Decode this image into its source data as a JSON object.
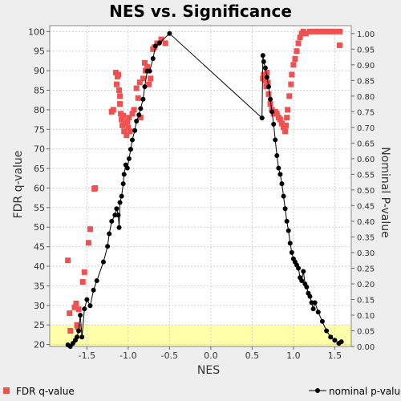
{
  "chart_data": {
    "type": "scatter",
    "title": "NES vs. Significance",
    "xlabel": "NES",
    "ylabel_left": "FDR q-value",
    "ylabel_right": "Nominal P-value",
    "xlim": [
      -1.95,
      1.7
    ],
    "ylim_left": [
      19.5,
      101.5
    ],
    "ylim_right": [
      0.0,
      1.025
    ],
    "x_ticks": [
      -1.5,
      -1.0,
      -0.5,
      0.0,
      0.5,
      1.0,
      1.5
    ],
    "x_tick_labels": [
      "-1.5",
      "-1.0",
      "-0.5",
      "0.0",
      "0.5",
      "1.0",
      "1.5"
    ],
    "y_left_ticks": [
      20,
      25,
      30,
      35,
      40,
      45,
      50,
      55,
      60,
      65,
      70,
      75,
      80,
      85,
      90,
      95,
      100
    ],
    "y_left_tick_labels": [
      "20",
      "25",
      "30",
      "35",
      "40",
      "45",
      "50",
      "55",
      "60",
      "65",
      "70",
      "75",
      "80",
      "85",
      "90",
      "95",
      "100"
    ],
    "y_right_ticks": [
      0.0,
      0.05,
      0.1,
      0.15,
      0.2,
      0.25,
      0.3,
      0.35,
      0.4,
      0.45,
      0.5,
      0.55,
      0.6,
      0.65,
      0.7,
      0.75,
      0.8,
      0.85,
      0.9,
      0.95,
      1.0
    ],
    "y_right_tick_labels": [
      "0.00",
      "0.05",
      "0.10",
      "0.15",
      "0.20",
      "0.25",
      "0.30",
      "0.35",
      "0.40",
      "0.45",
      "0.50",
      "0.55",
      "0.60",
      "0.65",
      "0.70",
      "0.75",
      "0.80",
      "0.85",
      "0.90",
      "0.95",
      "1.00"
    ],
    "significance_band": {
      "axis": "left",
      "from": 19.5,
      "to": 25,
      "color": "#ffffaa"
    },
    "grid": true,
    "legend_placement": "bottom",
    "series": [
      {
        "name": "FDR q-value",
        "kind": "square-markers",
        "axis": "left",
        "color": "#f05050",
        "points": [
          [
            -1.73,
            41.5
          ],
          [
            -1.71,
            28.0
          ],
          [
            -1.7,
            23.5
          ],
          [
            -1.65,
            29.5
          ],
          [
            -1.63,
            30.5
          ],
          [
            -1.62,
            25.0
          ],
          [
            -1.61,
            24.5
          ],
          [
            -1.6,
            29.0
          ],
          [
            -1.55,
            36.0
          ],
          [
            -1.53,
            38.5
          ],
          [
            -1.48,
            46.0
          ],
          [
            -1.46,
            49.5
          ],
          [
            -1.41,
            59.8
          ],
          [
            -1.4,
            60.0
          ],
          [
            -1.2,
            79.5
          ],
          [
            -1.18,
            80.0
          ],
          [
            -1.15,
            89.5
          ],
          [
            -1.14,
            86.5
          ],
          [
            -1.13,
            88.5
          ],
          [
            -1.12,
            89.0
          ],
          [
            -1.11,
            85.0
          ],
          [
            -1.1,
            83.5
          ],
          [
            -1.1,
            81.5
          ],
          [
            -1.09,
            79.0
          ],
          [
            -1.08,
            77.5
          ],
          [
            -1.07,
            76.0
          ],
          [
            -1.06,
            78.5
          ],
          [
            -1.05,
            74.5
          ],
          [
            -1.03,
            76.5
          ],
          [
            -1.02,
            73.5
          ],
          [
            -1.01,
            77.0
          ],
          [
            -1.0,
            75.5
          ],
          [
            -0.99,
            78.0
          ],
          [
            -0.98,
            74.5
          ],
          [
            -0.95,
            79.0
          ],
          [
            -0.93,
            80.0
          ],
          [
            -0.9,
            85.5
          ],
          [
            -0.88,
            83.0
          ],
          [
            -0.86,
            87.0
          ],
          [
            -0.85,
            78.0
          ],
          [
            -0.82,
            88.0
          ],
          [
            -0.8,
            92.0
          ],
          [
            -0.79,
            90.0
          ],
          [
            -0.77,
            91.0
          ],
          [
            -0.75,
            86.5
          ],
          [
            -0.73,
            88.0
          ],
          [
            -0.7,
            95.5
          ],
          [
            -0.68,
            96.0
          ],
          [
            -0.65,
            97.0
          ],
          [
            -0.6,
            98.0
          ],
          [
            -0.55,
            97.0
          ],
          [
            0.63,
            88.0
          ],
          [
            0.64,
            89.0
          ],
          [
            0.65,
            88.5
          ],
          [
            0.66,
            87.5
          ],
          [
            0.67,
            86.0
          ],
          [
            0.68,
            89.5
          ],
          [
            0.69,
            87.0
          ],
          [
            0.7,
            84.0
          ],
          [
            0.72,
            81.5
          ],
          [
            0.74,
            80.0
          ],
          [
            0.76,
            79.0
          ],
          [
            0.78,
            79.5
          ],
          [
            0.8,
            79.0
          ],
          [
            0.82,
            78.0
          ],
          [
            0.84,
            77.5
          ],
          [
            0.86,
            76.5
          ],
          [
            0.88,
            75.5
          ],
          [
            0.9,
            74.5
          ],
          [
            0.91,
            76.0
          ],
          [
            0.92,
            78.0
          ],
          [
            0.93,
            80.0
          ],
          [
            0.95,
            83.5
          ],
          [
            0.97,
            86.5
          ],
          [
            0.98,
            89.0
          ],
          [
            1.0,
            91.5
          ],
          [
            1.02,
            93.0
          ],
          [
            1.04,
            95.0
          ],
          [
            1.06,
            97.0
          ],
          [
            1.08,
            98.5
          ],
          [
            1.1,
            99.5
          ],
          [
            1.12,
            100.0
          ],
          [
            1.15,
            99.5
          ],
          [
            1.2,
            100.0
          ],
          [
            1.25,
            100.0
          ],
          [
            1.3,
            100.0
          ],
          [
            1.35,
            100.0
          ],
          [
            1.4,
            100.0
          ],
          [
            1.45,
            100.0
          ],
          [
            1.5,
            100.0
          ],
          [
            1.56,
            100.0
          ],
          [
            1.56,
            96.5
          ]
        ]
      },
      {
        "name": "nominal p-value",
        "kind": "line-with-dots",
        "axis": "right",
        "color": "#000000",
        "points": [
          [
            -1.73,
            0.005
          ],
          [
            -1.7,
            0.0
          ],
          [
            -1.67,
            0.01
          ],
          [
            -1.64,
            0.02
          ],
          [
            -1.62,
            0.03
          ],
          [
            -1.6,
            0.05
          ],
          [
            -1.58,
            0.1
          ],
          [
            -1.56,
            0.03
          ],
          [
            -1.53,
            0.12
          ],
          [
            -1.5,
            0.15
          ],
          [
            -1.46,
            0.13
          ],
          [
            -1.42,
            0.18
          ],
          [
            -1.38,
            0.21
          ],
          [
            -1.3,
            0.27
          ],
          [
            -1.25,
            0.32
          ],
          [
            -1.23,
            0.36
          ],
          [
            -1.2,
            0.4
          ],
          [
            -1.16,
            0.42
          ],
          [
            -1.14,
            0.44
          ],
          [
            -1.12,
            0.42
          ],
          [
            -1.11,
            0.38
          ],
          [
            -1.1,
            0.46
          ],
          [
            -1.08,
            0.48
          ],
          [
            -1.06,
            0.52
          ],
          [
            -1.05,
            0.55
          ],
          [
            -1.03,
            0.58
          ],
          [
            -1.01,
            0.57
          ],
          [
            -0.99,
            0.6
          ],
          [
            -0.97,
            0.63
          ],
          [
            -0.95,
            0.66
          ],
          [
            -0.92,
            0.69
          ],
          [
            -0.9,
            0.72
          ],
          [
            -0.87,
            0.74
          ],
          [
            -0.85,
            0.76
          ],
          [
            -0.82,
            0.79
          ],
          [
            -0.8,
            0.83
          ],
          [
            -0.77,
            0.88
          ],
          [
            -0.74,
            0.88
          ],
          [
            -0.7,
            0.92
          ],
          [
            -0.67,
            0.96
          ],
          [
            -0.62,
            0.97
          ],
          [
            -0.5,
            1.0
          ],
          [
            0.62,
            0.73
          ],
          [
            0.63,
            0.93
          ],
          [
            0.64,
            0.91
          ],
          [
            0.66,
            0.89
          ],
          [
            0.68,
            0.86
          ],
          [
            0.7,
            0.83
          ],
          [
            0.72,
            0.79
          ],
          [
            0.74,
            0.75
          ],
          [
            0.76,
            0.71
          ],
          [
            0.78,
            0.66
          ],
          [
            0.8,
            0.61
          ],
          [
            0.82,
            0.57
          ],
          [
            0.84,
            0.55
          ],
          [
            0.86,
            0.52
          ],
          [
            0.88,
            0.48
          ],
          [
            0.9,
            0.44
          ],
          [
            0.92,
            0.4
          ],
          [
            0.94,
            0.37
          ],
          [
            0.96,
            0.33
          ],
          [
            0.98,
            0.3
          ],
          [
            1.0,
            0.28
          ],
          [
            1.02,
            0.27
          ],
          [
            1.04,
            0.26
          ],
          [
            1.06,
            0.25
          ],
          [
            1.08,
            0.22
          ],
          [
            1.1,
            0.21
          ],
          [
            1.12,
            0.24
          ],
          [
            1.14,
            0.2
          ],
          [
            1.16,
            0.19
          ],
          [
            1.18,
            0.17
          ],
          [
            1.2,
            0.16
          ],
          [
            1.22,
            0.14
          ],
          [
            1.24,
            0.12
          ],
          [
            1.26,
            0.14
          ],
          [
            1.3,
            0.11
          ],
          [
            1.35,
            0.08
          ],
          [
            1.4,
            0.05
          ],
          [
            1.45,
            0.03
          ],
          [
            1.5,
            0.02
          ],
          [
            1.55,
            0.01
          ],
          [
            1.58,
            0.015
          ]
        ]
      }
    ]
  }
}
